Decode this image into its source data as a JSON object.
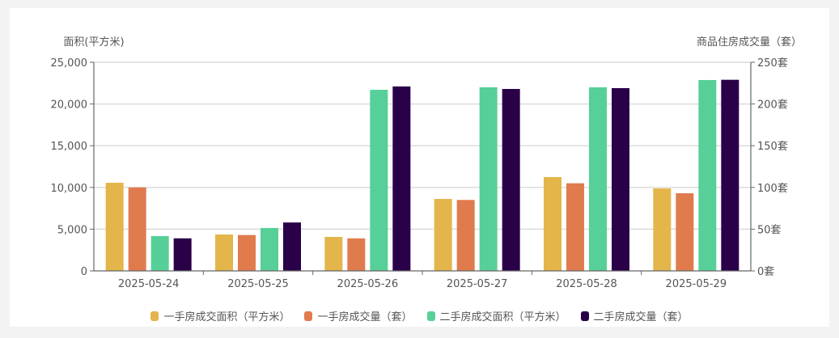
{
  "chart_data": {
    "type": "bar",
    "title": "",
    "categories": [
      "2025-05-24",
      "2025-05-25",
      "2025-05-26",
      "2025-05-27",
      "2025-05-28",
      "2025-05-29"
    ],
    "left_axis": {
      "label": "面积(平方米)",
      "range": [
        0,
        25000
      ],
      "ticks": [
        0,
        5000,
        10000,
        15000,
        20000,
        25000
      ],
      "tick_labels": [
        "0",
        "5,000",
        "10,000",
        "15,000",
        "20,000",
        "25,000"
      ]
    },
    "right_axis": {
      "label": "商品住房成交量（套）",
      "range": [
        0,
        250
      ],
      "ticks": [
        0,
        50,
        100,
        150,
        200,
        250
      ],
      "tick_labels": [
        "0套",
        "50套",
        "100套",
        "150套",
        "200套",
        "250套"
      ]
    },
    "grid": true,
    "legend_position": "bottom",
    "series": [
      {
        "name": "一手房成交面积（平方米）",
        "axis": "left",
        "color": "#e3b54a",
        "values": [
          10560,
          4360,
          4070,
          8620,
          11240,
          9880
        ]
      },
      {
        "name": "一手房成交量（套）",
        "axis": "right",
        "color": "#e07b4e",
        "values": [
          100,
          43,
          39,
          85,
          105,
          93
        ]
      },
      {
        "name": "二手房成交面积（平方米）",
        "axis": "left",
        "color": "#57cf98",
        "values": [
          4170,
          5140,
          21700,
          22000,
          22000,
          22870
        ]
      },
      {
        "name": "二手房成交量（套）",
        "axis": "right",
        "color": "#2a0048",
        "values": [
          39,
          58,
          221,
          218,
          219,
          229
        ]
      }
    ]
  }
}
